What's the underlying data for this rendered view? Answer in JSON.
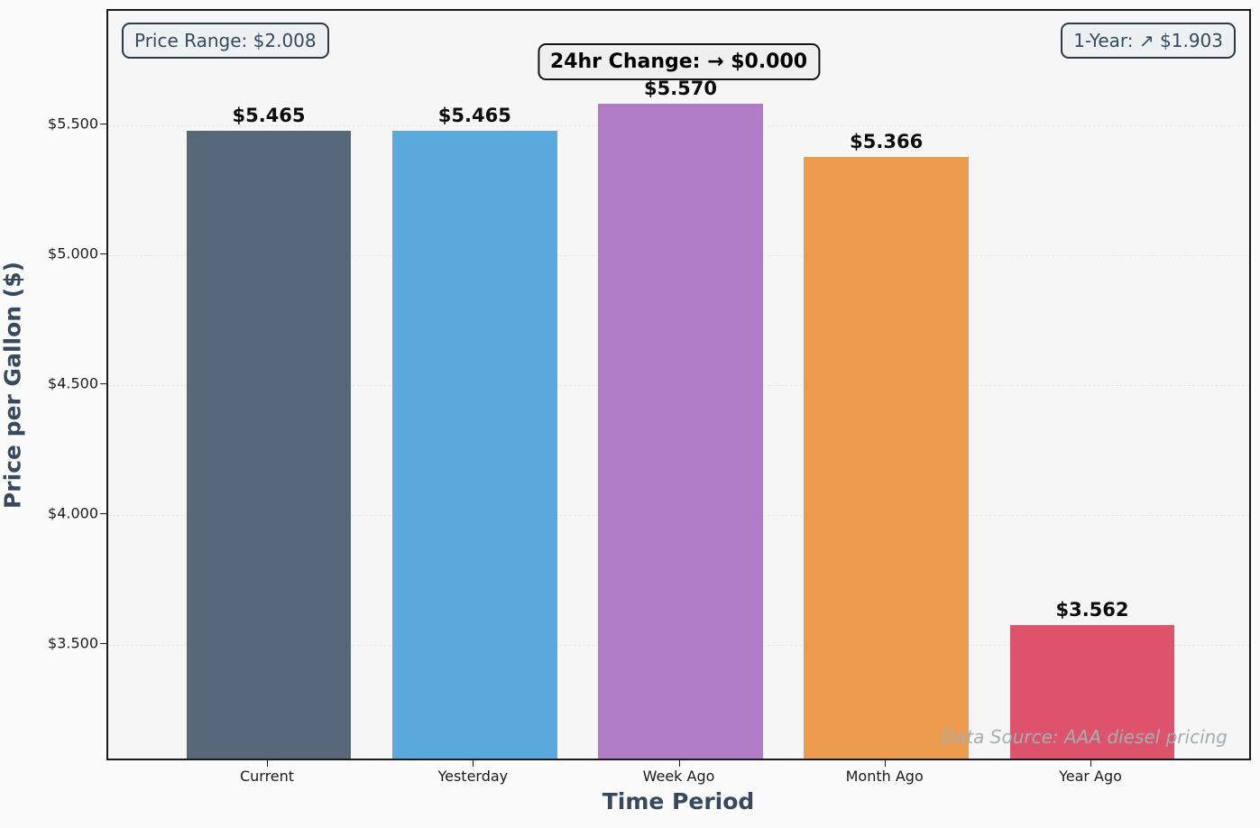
{
  "chart_data": {
    "type": "bar",
    "title": "",
    "categories": [
      "Current",
      "Yesterday",
      "Week Ago",
      "Month Ago",
      "Year Ago"
    ],
    "values": [
      5.465,
      5.465,
      5.57,
      5.366,
      3.562
    ],
    "bar_labels": [
      "$5.465",
      "$5.465",
      "$5.570",
      "$5.366",
      "$3.562"
    ],
    "bar_colors": [
      "#566779",
      "#5aaade",
      "#b07cc6",
      "#ec9a4d",
      "#dd536c"
    ],
    "xlabel": "Time Period",
    "ylabel": "Price per Gallon ($)",
    "ylim": [
      3.049,
      5.941
    ],
    "yticks": [
      5.5,
      5.0,
      4.5,
      4.0,
      3.5
    ],
    "ytick_labels": [
      "$5.500",
      "$5.000",
      "$4.500",
      "$4.000",
      "$3.500"
    ],
    "grid": "horizontal dashed, on",
    "legend": "none",
    "annotations": {
      "price_range": "Price Range: $2.008",
      "change_24hr": "24hr Change: → $0.000",
      "one_year": "1-Year: ↗ $1.903",
      "data_source": "Data Source: AAA diesel pricing"
    }
  }
}
